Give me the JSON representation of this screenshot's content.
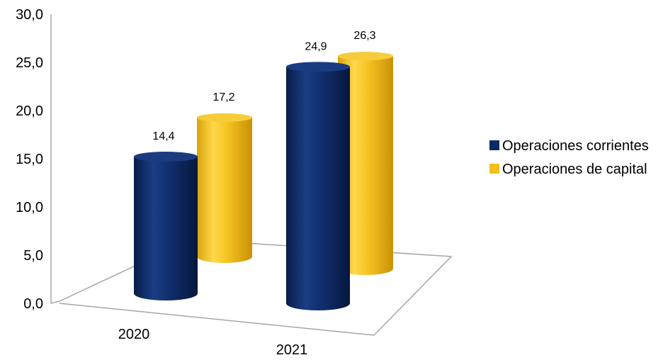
{
  "chart_data": {
    "type": "bar",
    "style": "3d-cylinder",
    "categories": [
      "2020",
      "2021"
    ],
    "series": [
      {
        "name": "Operaciones corrientes",
        "values": [
          14.4,
          24.9
        ],
        "labels": [
          "14,4",
          "24,9"
        ],
        "color": "#0d2a66"
      },
      {
        "name": "Operaciones de capital",
        "values": [
          17.2,
          26.3
        ],
        "labels": [
          "17,2",
          "26,3"
        ],
        "color": "#f3bf1a"
      }
    ],
    "ylim": [
      0,
      30
    ],
    "y_ticks": [
      "0,0",
      "5,0",
      "10,0",
      "15,0",
      "20,0",
      "25,0",
      "30,0"
    ],
    "legend_position": "right",
    "grid": false
  }
}
